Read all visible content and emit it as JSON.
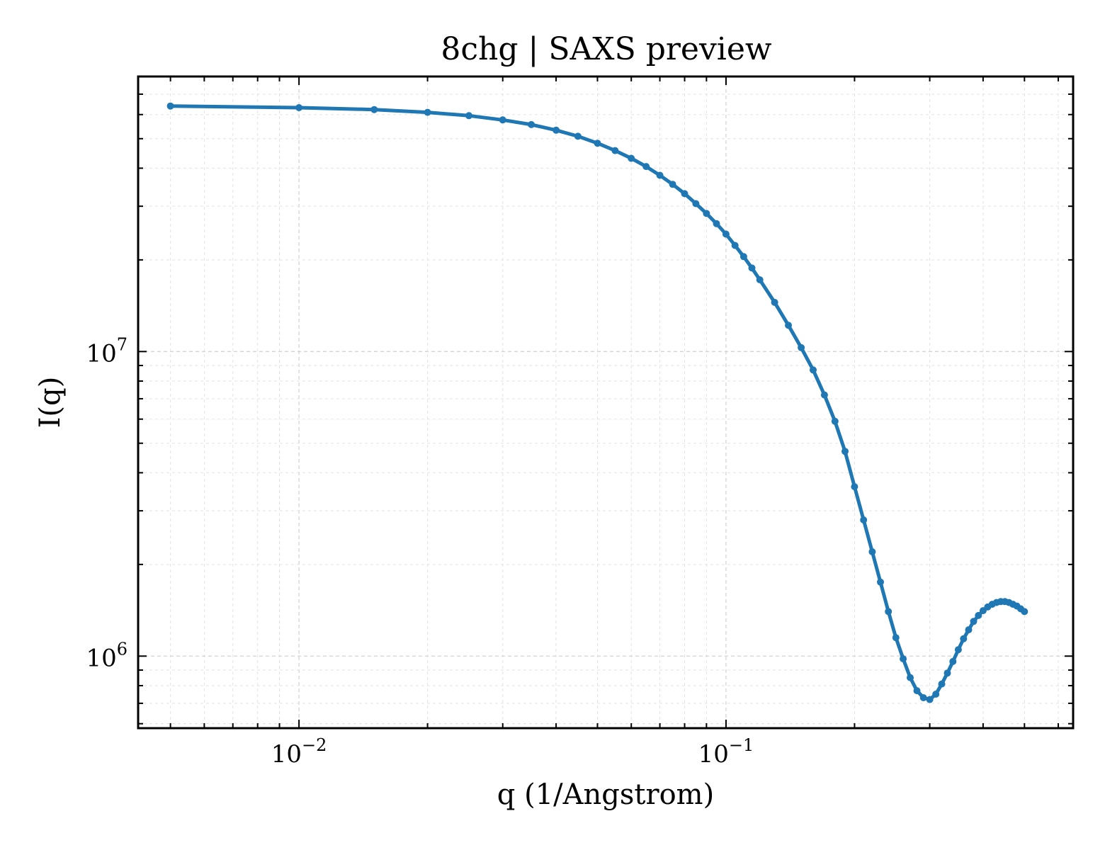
{
  "chart_data": {
    "type": "line",
    "title": "8chg | SAXS preview",
    "xlabel": "q (1/Angstrom)",
    "ylabel": "I(q)",
    "xscale": "log",
    "yscale": "log",
    "xlim": [
      0.0042,
      0.65
    ],
    "ylim": [
      580000,
      80000000
    ],
    "grid": true,
    "legend": "none",
    "x_ticks": [
      {
        "value": 0.01,
        "base": "10",
        "exp": "−2"
      },
      {
        "value": 0.1,
        "base": "10",
        "exp": "−1"
      }
    ],
    "y_ticks": [
      {
        "value": 1000000,
        "base": "10",
        "exp": "6"
      },
      {
        "value": 10000000,
        "base": "10",
        "exp": "7"
      }
    ],
    "series": [
      {
        "color": "#1f77b4",
        "marker": "circle",
        "q_min": 0.005,
        "q_max": 0.5,
        "x": [
          0.005,
          0.01,
          0.015,
          0.02,
          0.025,
          0.03,
          0.035,
          0.04,
          0.045,
          0.05,
          0.055,
          0.06,
          0.065,
          0.07,
          0.075,
          0.08,
          0.085,
          0.09,
          0.095,
          0.1,
          0.105,
          0.11,
          0.115,
          0.12,
          0.13,
          0.14,
          0.15,
          0.16,
          0.17,
          0.18,
          0.19,
          0.2,
          0.21,
          0.22,
          0.23,
          0.24,
          0.25,
          0.26,
          0.27,
          0.28,
          0.29,
          0.3,
          0.31,
          0.32,
          0.33,
          0.34,
          0.35,
          0.36,
          0.37,
          0.38,
          0.39,
          0.4,
          0.41,
          0.42,
          0.43,
          0.44,
          0.45,
          0.46,
          0.47,
          0.48,
          0.49,
          0.5
        ],
        "y": [
          64000000,
          63200000,
          62300000,
          61000000,
          59500000,
          57600000,
          55600000,
          53300000,
          50900000,
          48300000,
          45700000,
          43100000,
          40500000,
          37900000,
          35400000,
          33000000,
          30600000,
          28400000,
          26300000,
          24300000,
          22300000,
          20500000,
          18800000,
          17200000,
          14500000,
          12200000,
          10300000,
          8700000,
          7200000,
          5900000,
          4700000,
          3600000,
          2800000,
          2200000,
          1750000,
          1400000,
          1150000,
          980000,
          850000,
          770000,
          730000,
          720000,
          750000,
          810000,
          880000,
          960000,
          1050000,
          1140000,
          1220000,
          1300000,
          1360000,
          1410000,
          1450000,
          1480000,
          1500000,
          1510000,
          1510000,
          1500000,
          1480000,
          1460000,
          1430000,
          1400000
        ]
      }
    ]
  }
}
